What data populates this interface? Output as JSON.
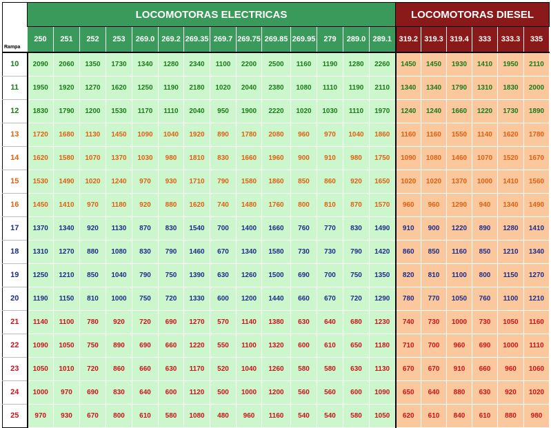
{
  "table": {
    "title_electric": "LOCOMOTORAS ELECTRICAS",
    "title_diesel": "LOCOMOTORAS DIESEL",
    "rampa_label": "Rampa",
    "electric_models": [
      "250",
      "251",
      "252",
      "253",
      "269.0",
      "269.2",
      "269.35",
      "269.7",
      "269.75",
      "269.85",
      "269.95",
      "279",
      "289.0",
      "289.1"
    ],
    "diesel_models": [
      "319.2",
      "319.3",
      "319.4",
      "333",
      "333.3",
      "335"
    ],
    "colors": {
      "electric_header": "#3a9a5c",
      "diesel_header": "#8a1a1a",
      "electric_cell": "#ccf7cc",
      "diesel_cell": "#fbc79c",
      "green_text": "#1a7a1a",
      "orange_text": "#e06010",
      "blue_text": "#1c2a8a",
      "red_text": "#d0101a"
    },
    "rows": [
      {
        "rampa": "10",
        "color": "green",
        "values": [
          "2090",
          "2060",
          "1350",
          "1730",
          "1340",
          "1280",
          "2340",
          "1100",
          "2200",
          "2500",
          "1160",
          "1190",
          "1280",
          "2260",
          "1450",
          "1450",
          "1930",
          "1410",
          "1950",
          "2110"
        ]
      },
      {
        "rampa": "11",
        "color": "green",
        "values": [
          "1950",
          "1920",
          "1270",
          "1620",
          "1250",
          "1190",
          "2180",
          "1020",
          "2040",
          "2380",
          "1080",
          "1110",
          "1190",
          "2110",
          "1340",
          "1340",
          "1790",
          "1310",
          "1830",
          "2000"
        ]
      },
      {
        "rampa": "12",
        "color": "green",
        "values": [
          "1830",
          "1790",
          "1200",
          "1530",
          "1170",
          "1110",
          "2040",
          "950",
          "1900",
          "2220",
          "1020",
          "1030",
          "1110",
          "1970",
          "1240",
          "1240",
          "1660",
          "1220",
          "1730",
          "1890"
        ]
      },
      {
        "rampa": "13",
        "color": "orange",
        "values": [
          "1720",
          "1680",
          "1130",
          "1450",
          "1090",
          "1040",
          "1920",
          "890",
          "1780",
          "2080",
          "960",
          "970",
          "1040",
          "1860",
          "1160",
          "1160",
          "1550",
          "1140",
          "1620",
          "1780"
        ]
      },
      {
        "rampa": "14",
        "color": "orange",
        "values": [
          "1620",
          "1580",
          "1070",
          "1370",
          "1030",
          "980",
          "1810",
          "830",
          "1660",
          "1960",
          "900",
          "910",
          "980",
          "1750",
          "1090",
          "1080",
          "1460",
          "1070",
          "1520",
          "1670"
        ]
      },
      {
        "rampa": "15",
        "color": "orange",
        "values": [
          "1530",
          "1490",
          "1020",
          "1240",
          "970",
          "930",
          "1710",
          "790",
          "1580",
          "1860",
          "850",
          "860",
          "920",
          "1650",
          "1020",
          "1020",
          "1370",
          "1000",
          "1410",
          "1560"
        ]
      },
      {
        "rampa": "16",
        "color": "orange",
        "values": [
          "1450",
          "1410",
          "970",
          "1180",
          "920",
          "880",
          "1620",
          "740",
          "1480",
          "1760",
          "800",
          "810",
          "870",
          "1570",
          "960",
          "960",
          "1290",
          "940",
          "1340",
          "1490"
        ]
      },
      {
        "rampa": "17",
        "color": "blue",
        "values": [
          "1370",
          "1340",
          "920",
          "1130",
          "870",
          "830",
          "1540",
          "700",
          "1400",
          "1660",
          "760",
          "770",
          "830",
          "1490",
          "910",
          "900",
          "1220",
          "890",
          "1280",
          "1410"
        ]
      },
      {
        "rampa": "18",
        "color": "blue",
        "values": [
          "1310",
          "1270",
          "880",
          "1080",
          "830",
          "790",
          "1460",
          "670",
          "1340",
          "1580",
          "730",
          "730",
          "790",
          "1420",
          "860",
          "850",
          "1160",
          "850",
          "1210",
          "1340"
        ]
      },
      {
        "rampa": "19",
        "color": "blue",
        "values": [
          "1250",
          "1210",
          "850",
          "1040",
          "790",
          "750",
          "1390",
          "630",
          "1260",
          "1500",
          "690",
          "700",
          "750",
          "1350",
          "820",
          "810",
          "1100",
          "800",
          "1150",
          "1270"
        ]
      },
      {
        "rampa": "20",
        "color": "blue",
        "values": [
          "1190",
          "1150",
          "810",
          "1000",
          "750",
          "720",
          "1330",
          "600",
          "1200",
          "1440",
          "660",
          "670",
          "720",
          "1290",
          "780",
          "770",
          "1050",
          "760",
          "1100",
          "1210"
        ]
      },
      {
        "rampa": "21",
        "color": "red",
        "values": [
          "1140",
          "1100",
          "780",
          "920",
          "720",
          "690",
          "1270",
          "570",
          "1140",
          "1380",
          "630",
          "640",
          "680",
          "1230",
          "740",
          "730",
          "1000",
          "730",
          "1050",
          "1160"
        ]
      },
      {
        "rampa": "22",
        "color": "red",
        "values": [
          "1090",
          "1050",
          "750",
          "890",
          "690",
          "660",
          "1220",
          "550",
          "1100",
          "1320",
          "600",
          "610",
          "650",
          "1180",
          "710",
          "700",
          "960",
          "690",
          "1000",
          "1110"
        ]
      },
      {
        "rampa": "23",
        "color": "red",
        "values": [
          "1050",
          "1010",
          "720",
          "860",
          "660",
          "630",
          "1170",
          "520",
          "1040",
          "1260",
          "580",
          "580",
          "630",
          "1130",
          "670",
          "670",
          "910",
          "660",
          "960",
          "1060"
        ]
      },
      {
        "rampa": "24",
        "color": "red",
        "values": [
          "1000",
          "970",
          "690",
          "830",
          "640",
          "600",
          "1120",
          "500",
          "1000",
          "1200",
          "560",
          "560",
          "600",
          "1090",
          "650",
          "640",
          "880",
          "630",
          "920",
          "1020"
        ]
      },
      {
        "rampa": "25",
        "color": "red",
        "values": [
          "970",
          "930",
          "670",
          "800",
          "610",
          "580",
          "1080",
          "480",
          "960",
          "1160",
          "540",
          "540",
          "580",
          "1050",
          "620",
          "610",
          "840",
          "610",
          "880",
          "980"
        ]
      }
    ]
  }
}
